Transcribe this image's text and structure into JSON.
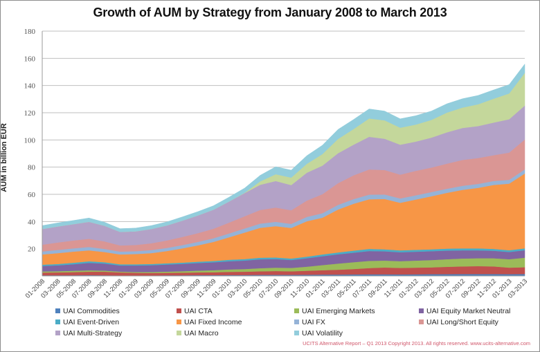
{
  "chart_data": {
    "type": "area",
    "stacked": true,
    "title": "Growth of AUM by Strategy from January 2008 to March 2013",
    "xlabel": "",
    "ylabel": "AUM in billion EUR",
    "ylim": [
      0,
      180
    ],
    "yticks": [
      20,
      40,
      60,
      80,
      100,
      120,
      140,
      160,
      180
    ],
    "grid": true,
    "legend_position": "bottom",
    "xtick_labels": [
      "01-2008",
      "03-2008",
      "05-2008",
      "07-2008",
      "09-2008",
      "11-2008",
      "01-2009",
      "03-2009",
      "05-2009",
      "07-2009",
      "09-2009",
      "11-2009",
      "01-2010",
      "03-2010",
      "05-2010",
      "07-2010",
      "09-2010",
      "11-2010",
      "01-2011",
      "03-2011",
      "05-2011",
      "07-2011",
      "09-2011",
      "11-2011",
      "01-2012",
      "03-2012",
      "05-2012",
      "07-2012",
      "09-2012",
      "11-2012",
      "01-2013",
      "03-2013"
    ],
    "keypoints": [
      "01-2008",
      "03-2008",
      "05-2008",
      "07-2008",
      "09-2008",
      "11-2008",
      "01-2009",
      "03-2009",
      "05-2009",
      "07-2009",
      "09-2009",
      "11-2009",
      "01-2010",
      "03-2010",
      "05-2010",
      "07-2010",
      "09-2010",
      "11-2010",
      "01-2011",
      "03-2011",
      "05-2011",
      "07-2011",
      "09-2011",
      "11-2011",
      "01-2012",
      "03-2012",
      "05-2012",
      "07-2012",
      "09-2012",
      "11-2012",
      "01-2013",
      "03-2013"
    ],
    "series": [
      {
        "name": "UAI Commodities",
        "color": "#4f81bd",
        "values": [
          0.5,
          0.5,
          0.5,
          0.6,
          0.5,
          0.4,
          0.4,
          0.4,
          0.5,
          0.5,
          0.6,
          0.6,
          0.7,
          0.7,
          0.8,
          0.8,
          0.8,
          0.9,
          1.0,
          1.0,
          1.1,
          1.2,
          1.2,
          1.1,
          1.2,
          1.3,
          1.3,
          1.4,
          1.4,
          1.4,
          1.3,
          1.4
        ]
      },
      {
        "name": "UAI CTA",
        "color": "#c0504d",
        "values": [
          2.0,
          2.1,
          2.3,
          2.5,
          2.6,
          2.2,
          1.9,
          1.8,
          1.8,
          1.9,
          2.0,
          2.1,
          2.3,
          2.4,
          2.6,
          2.8,
          2.6,
          2.9,
          3.2,
          3.6,
          4.0,
          4.6,
          5.0,
          4.8,
          4.9,
          5.0,
          5.4,
          5.6,
          5.8,
          5.6,
          4.8,
          5.0
        ]
      },
      {
        "name": "UAI Emerging Markets",
        "color": "#9bbb59",
        "values": [
          0.8,
          0.9,
          1.0,
          1.0,
          0.8,
          0.6,
          0.6,
          0.7,
          0.9,
          1.1,
          1.3,
          1.5,
          1.8,
          2.0,
          2.3,
          2.5,
          2.5,
          3.0,
          3.8,
          4.5,
          5.0,
          5.3,
          5.1,
          5.0,
          5.2,
          5.4,
          5.6,
          5.8,
          5.8,
          6.0,
          6.2,
          7.0
        ]
      },
      {
        "name": "UAI Equity Market Neutral",
        "color": "#8064a2",
        "values": [
          4.0,
          4.3,
          4.8,
          5.5,
          5.2,
          4.5,
          4.8,
          5.0,
          5.2,
          5.4,
          5.6,
          5.8,
          6.0,
          6.2,
          6.5,
          6.3,
          5.8,
          6.2,
          6.5,
          6.8,
          7.0,
          7.2,
          6.8,
          6.5,
          6.5,
          6.5,
          6.3,
          6.0,
          5.8,
          5.5,
          5.3,
          5.5
        ]
      },
      {
        "name": "UAI Event-Driven",
        "color": "#4bacc6",
        "values": [
          1.0,
          1.0,
          1.1,
          1.2,
          1.0,
          0.9,
          0.9,
          0.9,
          0.9,
          0.9,
          1.0,
          1.0,
          1.1,
          1.1,
          1.2,
          1.2,
          1.1,
          1.2,
          1.3,
          1.4,
          1.5,
          1.6,
          1.5,
          1.4,
          1.4,
          1.4,
          1.5,
          1.5,
          1.5,
          1.4,
          1.3,
          1.4
        ]
      },
      {
        "name": "UAI Fixed Income",
        "color": "#f79646",
        "values": [
          7.5,
          8.0,
          8.2,
          8.0,
          7.5,
          7.2,
          7.5,
          8.0,
          9.0,
          10.5,
          12.0,
          14.0,
          16.5,
          19.5,
          22.0,
          23.0,
          22.5,
          26.0,
          27.0,
          31.5,
          34.5,
          36.5,
          37.0,
          35.0,
          37.0,
          39.0,
          41.0,
          43.0,
          44.5,
          47.0,
          49.0,
          55.0
        ]
      },
      {
        "name": "UAI FX",
        "color": "#95b3d7",
        "values": [
          2.2,
          2.3,
          2.4,
          2.5,
          2.3,
          2.1,
          2.1,
          2.2,
          2.3,
          2.4,
          2.5,
          2.7,
          2.8,
          3.0,
          3.1,
          3.2,
          3.0,
          3.2,
          3.3,
          3.4,
          3.4,
          3.4,
          3.3,
          3.2,
          3.1,
          3.1,
          3.0,
          3.0,
          2.9,
          2.9,
          2.8,
          3.0
        ]
      },
      {
        "name": "UAI Long/Short Equity",
        "color": "#da9694",
        "values": [
          5.0,
          5.5,
          5.8,
          6.0,
          5.5,
          4.5,
          4.6,
          5.0,
          5.5,
          6.0,
          6.5,
          7.0,
          8.0,
          9.0,
          10.0,
          10.5,
          10.0,
          12.0,
          14.0,
          16.0,
          17.5,
          18.5,
          18.0,
          17.5,
          18.0,
          18.0,
          18.5,
          19.0,
          19.0,
          19.0,
          20.0,
          22.0
        ]
      },
      {
        "name": "UAI Multi-Strategy",
        "color": "#b3a2c7",
        "values": [
          11.5,
          11.8,
          12.0,
          12.5,
          11.5,
          10.0,
          10.0,
          10.5,
          11.0,
          12.0,
          13.0,
          14.0,
          15.5,
          17.0,
          18.5,
          19.5,
          18.5,
          20.5,
          21.0,
          22.0,
          22.5,
          24.0,
          23.0,
          22.0,
          21.5,
          22.0,
          23.0,
          23.5,
          23.5,
          24.0,
          24.5,
          25.0
        ]
      },
      {
        "name": "UAI Macro",
        "color": "#c4d79b",
        "values": [
          0.0,
          0.0,
          0.0,
          0.0,
          0.0,
          0.0,
          0.0,
          0.0,
          0.0,
          0.0,
          0.0,
          0.0,
          0.0,
          0.2,
          2.5,
          5.0,
          5.5,
          6.5,
          8.5,
          10.5,
          11.5,
          13.5,
          13.5,
          12.5,
          12.5,
          13.0,
          14.5,
          15.0,
          16.0,
          17.5,
          19.0,
          24.0
        ]
      },
      {
        "name": "UAI Volatility",
        "color": "#92cddc",
        "values": [
          2.5,
          2.6,
          2.7,
          2.8,
          2.6,
          2.4,
          2.4,
          2.5,
          2.6,
          2.7,
          2.8,
          2.9,
          3.2,
          3.5,
          4.5,
          5.5,
          5.5,
          6.0,
          6.5,
          7.0,
          7.0,
          7.0,
          6.8,
          6.5,
          6.5,
          6.5,
          6.5,
          6.5,
          6.5,
          6.5,
          6.5,
          6.5
        ]
      }
    ]
  },
  "footer": "UCITS Alternative Report – Q1 2013 Copyright 2013. All rights reserved. www.ucits-alternative.com"
}
